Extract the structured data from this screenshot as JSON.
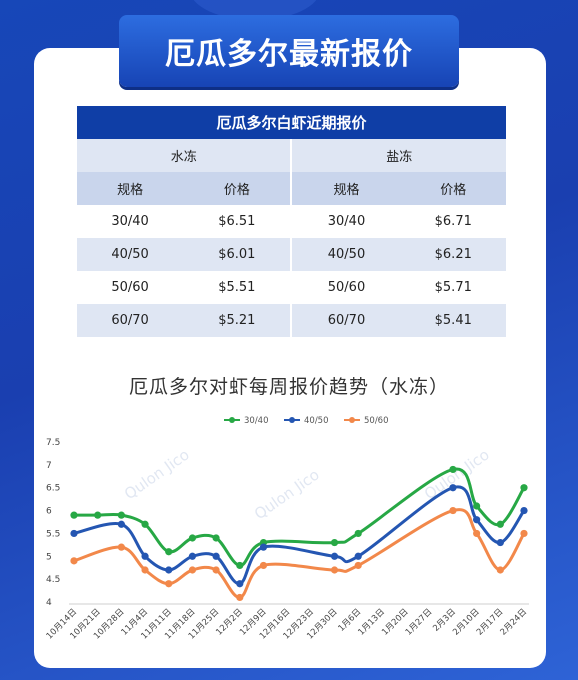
{
  "page_title": "厄瓜多尔最新报价",
  "table": {
    "title": "厄瓜多尔白虾近期报价",
    "groups": [
      "水冻",
      "盐冻"
    ],
    "columns": [
      "规格",
      "价格",
      "规格",
      "价格"
    ],
    "rows": [
      [
        "30/40",
        "$6.51",
        "30/40",
        "$6.71"
      ],
      [
        "40/50",
        "$6.01",
        "40/50",
        "$6.21"
      ],
      [
        "50/60",
        "$5.51",
        "50/60",
        "$5.71"
      ],
      [
        "60/70",
        "$5.21",
        "60/70",
        "$5.41"
      ]
    ]
  },
  "watermark": "Qulon Jico",
  "chart_data": {
    "type": "line",
    "title": "厄瓜多尔对虾每周报价趋势（水冻）",
    "categories": [
      "10月14日",
      "10月21日",
      "10月28日",
      "11月4日",
      "11月11日",
      "11月18日",
      "11月25日",
      "12月2日",
      "12月9日",
      "12月16日",
      "12月23日",
      "12月30日",
      "1月6日",
      "1月13日",
      "1月20日",
      "1月27日",
      "2月3日",
      "2月10日",
      "2月17日",
      "2月24日"
    ],
    "ylim": [
      4,
      7.5
    ],
    "yticks": [
      4,
      4.5,
      5,
      5.5,
      6,
      6.5,
      7,
      7.5
    ],
    "legend_position": "top",
    "grid": false,
    "series": [
      {
        "name": "30/40",
        "color": "#27a845",
        "values": [
          5.9,
          5.9,
          5.9,
          5.7,
          5.1,
          5.4,
          5.4,
          4.8,
          5.3,
          null,
          null,
          5.3,
          5.5,
          null,
          null,
          null,
          6.9,
          6.1,
          5.7,
          6.5
        ]
      },
      {
        "name": "40/50",
        "color": "#2456b2",
        "values": [
          5.5,
          null,
          5.7,
          5.0,
          4.7,
          5.0,
          5.0,
          4.4,
          5.2,
          null,
          null,
          5.0,
          5.0,
          null,
          null,
          null,
          6.5,
          5.8,
          5.3,
          6.0
        ]
      },
      {
        "name": "50/60",
        "color": "#f2884a",
        "values": [
          4.9,
          null,
          5.2,
          4.7,
          4.4,
          4.7,
          4.7,
          4.1,
          4.8,
          null,
          null,
          4.7,
          4.8,
          null,
          null,
          null,
          6.0,
          5.5,
          4.7,
          5.5
        ]
      }
    ]
  }
}
